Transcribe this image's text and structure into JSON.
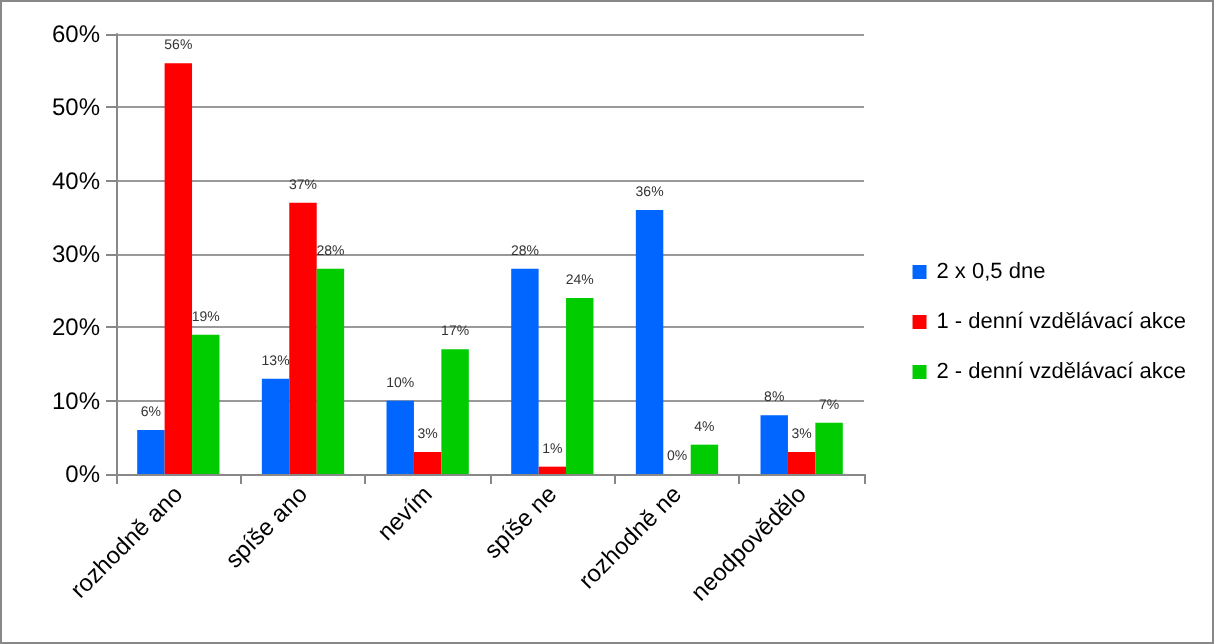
{
  "chart_data": {
    "type": "bar",
    "categories": [
      "rozhodně ano",
      "spíše ano",
      "nevím",
      "spíše ne",
      "rozhodně ne",
      "neodpovědělo"
    ],
    "series": [
      {
        "name": "2 x 0,5 dne",
        "color": "#0066ff",
        "values": [
          6,
          13,
          10,
          28,
          36,
          8
        ],
        "value_labels": [
          "6%",
          "13%",
          "10%",
          "28%",
          "36%",
          "8%"
        ]
      },
      {
        "name": "1 - denní vzdělávací akce",
        "color": "#ff0000",
        "values": [
          56,
          37,
          3,
          1,
          0,
          3
        ],
        "value_labels": [
          "56%",
          "37%",
          "3%",
          "1%",
          "0%",
          "3%"
        ]
      },
      {
        "name": "2 - denní vzdělávací akce",
        "color": "#00cc00",
        "values": [
          19,
          28,
          17,
          24,
          4,
          7
        ],
        "value_labels": [
          "19%",
          "28%",
          "17%",
          "24%",
          "4%",
          "7%"
        ]
      }
    ],
    "ylim": [
      0,
      60
    ],
    "yticks": [
      {
        "value": 0,
        "label": "0%"
      },
      {
        "value": 10,
        "label": "10%"
      },
      {
        "value": 20,
        "label": "20%"
      },
      {
        "value": 30,
        "label": "30%"
      },
      {
        "value": 40,
        "label": "40%"
      },
      {
        "value": 50,
        "label": "50%"
      },
      {
        "value": 60,
        "label": "60%"
      }
    ],
    "grid": "y",
    "legend": "right"
  }
}
